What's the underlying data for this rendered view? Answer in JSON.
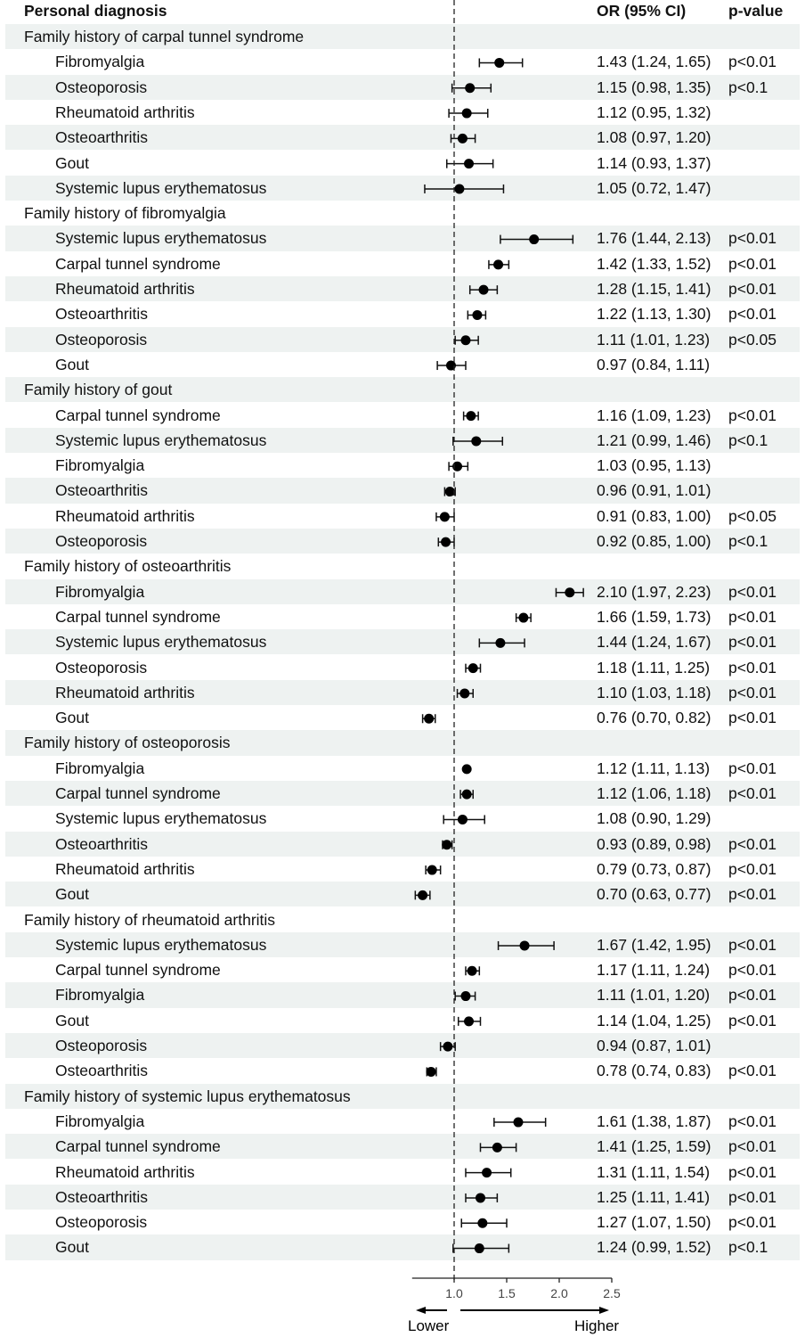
{
  "chart_data": {
    "type": "forest",
    "header": {
      "label": "Personal diagnosis",
      "or": "OR (95% CI)",
      "p": "p-value"
    },
    "xlim": [
      0.6,
      2.5
    ],
    "ticks": [
      "1.0",
      "1.5",
      "2.0",
      "2.5"
    ],
    "tick_values": [
      1.0,
      1.5,
      2.0,
      2.5
    ],
    "reference": 1.0,
    "direction_labels": {
      "lower": "Lower",
      "higher": "Higher"
    },
    "groups": [
      {
        "title": "Family history of carpal tunnel syndrome",
        "rows": [
          {
            "label": "Fibromyalgia",
            "or": 1.43,
            "lo": 1.24,
            "hi": 1.65,
            "text": "1.43 (1.24, 1.65)",
            "p": "p<0.01"
          },
          {
            "label": "Osteoporosis",
            "or": 1.15,
            "lo": 0.98,
            "hi": 1.35,
            "text": "1.15 (0.98, 1.35)",
            "p": "p<0.1"
          },
          {
            "label": "Rheumatoid arthritis",
            "or": 1.12,
            "lo": 0.95,
            "hi": 1.32,
            "text": "1.12 (0.95, 1.32)",
            "p": ""
          },
          {
            "label": "Osteoarthritis",
            "or": 1.08,
            "lo": 0.97,
            "hi": 1.2,
            "text": "1.08 (0.97, 1.20)",
            "p": ""
          },
          {
            "label": "Gout",
            "or": 1.14,
            "lo": 0.93,
            "hi": 1.37,
            "text": "1.14 (0.93, 1.37)",
            "p": ""
          },
          {
            "label": "Systemic lupus erythematosus",
            "or": 1.05,
            "lo": 0.72,
            "hi": 1.47,
            "text": "1.05 (0.72, 1.47)",
            "p": ""
          }
        ]
      },
      {
        "title": "Family history of fibromyalgia",
        "rows": [
          {
            "label": "Systemic lupus erythematosus",
            "or": 1.76,
            "lo": 1.44,
            "hi": 2.13,
            "text": "1.76 (1.44, 2.13)",
            "p": "p<0.01"
          },
          {
            "label": "Carpal tunnel syndrome",
            "or": 1.42,
            "lo": 1.33,
            "hi": 1.52,
            "text": "1.42 (1.33, 1.52)",
            "p": "p<0.01"
          },
          {
            "label": "Rheumatoid arthritis",
            "or": 1.28,
            "lo": 1.15,
            "hi": 1.41,
            "text": "1.28 (1.15, 1.41)",
            "p": "p<0.01"
          },
          {
            "label": "Osteoarthritis",
            "or": 1.22,
            "lo": 1.13,
            "hi": 1.3,
            "text": "1.22 (1.13, 1.30)",
            "p": "p<0.01"
          },
          {
            "label": "Osteoporosis",
            "or": 1.11,
            "lo": 1.01,
            "hi": 1.23,
            "text": "1.11 (1.01, 1.23)",
            "p": "p<0.05"
          },
          {
            "label": "Gout",
            "or": 0.97,
            "lo": 0.84,
            "hi": 1.11,
            "text": "0.97 (0.84, 1.11)",
            "p": ""
          }
        ]
      },
      {
        "title": "Family history of gout",
        "rows": [
          {
            "label": "Carpal tunnel syndrome",
            "or": 1.16,
            "lo": 1.09,
            "hi": 1.23,
            "text": "1.16 (1.09, 1.23)",
            "p": "p<0.01"
          },
          {
            "label": "Systemic lupus erythematosus",
            "or": 1.21,
            "lo": 0.99,
            "hi": 1.46,
            "text": "1.21 (0.99, 1.46)",
            "p": "p<0.1"
          },
          {
            "label": "Fibromyalgia",
            "or": 1.03,
            "lo": 0.95,
            "hi": 1.13,
            "text": "1.03 (0.95, 1.13)",
            "p": ""
          },
          {
            "label": "Osteoarthritis",
            "or": 0.96,
            "lo": 0.91,
            "hi": 1.01,
            "text": "0.96 (0.91, 1.01)",
            "p": ""
          },
          {
            "label": "Rheumatoid arthritis",
            "or": 0.91,
            "lo": 0.83,
            "hi": 1.0,
            "text": "0.91 (0.83, 1.00)",
            "p": "p<0.05"
          },
          {
            "label": "Osteoporosis",
            "or": 0.92,
            "lo": 0.85,
            "hi": 1.0,
            "text": "0.92 (0.85, 1.00)",
            "p": "p<0.1"
          }
        ]
      },
      {
        "title": "Family history of osteoarthritis",
        "rows": [
          {
            "label": "Fibromyalgia",
            "or": 2.1,
            "lo": 1.97,
            "hi": 2.23,
            "text": "2.10 (1.97, 2.23)",
            "p": "p<0.01"
          },
          {
            "label": "Carpal tunnel syndrome",
            "or": 1.66,
            "lo": 1.59,
            "hi": 1.73,
            "text": "1.66 (1.59, 1.73)",
            "p": "p<0.01"
          },
          {
            "label": "Systemic lupus erythematosus",
            "or": 1.44,
            "lo": 1.24,
            "hi": 1.67,
            "text": "1.44 (1.24, 1.67)",
            "p": "p<0.01"
          },
          {
            "label": "Osteoporosis",
            "or": 1.18,
            "lo": 1.11,
            "hi": 1.25,
            "text": "1.18 (1.11, 1.25)",
            "p": "p<0.01"
          },
          {
            "label": "Rheumatoid arthritis",
            "or": 1.1,
            "lo": 1.03,
            "hi": 1.18,
            "text": "1.10 (1.03, 1.18)",
            "p": "p<0.01"
          },
          {
            "label": "Gout",
            "or": 0.76,
            "lo": 0.7,
            "hi": 0.82,
            "text": "0.76 (0.70, 0.82)",
            "p": "p<0.01"
          }
        ]
      },
      {
        "title": "Family history of osteoporosis",
        "rows": [
          {
            "label": "Fibromyalgia",
            "or": 1.12,
            "lo": 1.11,
            "hi": 1.13,
            "text": "1.12 (1.11, 1.13)",
            "p": "p<0.01"
          },
          {
            "label": "Carpal tunnel syndrome",
            "or": 1.12,
            "lo": 1.06,
            "hi": 1.18,
            "text": "1.12 (1.06, 1.18)",
            "p": "p<0.01"
          },
          {
            "label": "Systemic lupus erythematosus",
            "or": 1.08,
            "lo": 0.9,
            "hi": 1.29,
            "text": "1.08 (0.90, 1.29)",
            "p": ""
          },
          {
            "label": "Osteoarthritis",
            "or": 0.93,
            "lo": 0.89,
            "hi": 0.98,
            "text": "0.93 (0.89, 0.98)",
            "p": "p<0.01"
          },
          {
            "label": "Rheumatoid arthritis",
            "or": 0.79,
            "lo": 0.73,
            "hi": 0.87,
            "text": "0.79 (0.73, 0.87)",
            "p": "p<0.01"
          },
          {
            "label": "Gout",
            "or": 0.7,
            "lo": 0.63,
            "hi": 0.77,
            "text": "0.70 (0.63, 0.77)",
            "p": "p<0.01"
          }
        ]
      },
      {
        "title": "Family history of rheumatoid arthritis",
        "rows": [
          {
            "label": "Systemic lupus erythematosus",
            "or": 1.67,
            "lo": 1.42,
            "hi": 1.95,
            "text": "1.67 (1.42, 1.95)",
            "p": "p<0.01"
          },
          {
            "label": "Carpal tunnel syndrome",
            "or": 1.17,
            "lo": 1.11,
            "hi": 1.24,
            "text": "1.17 (1.11, 1.24)",
            "p": "p<0.01"
          },
          {
            "label": "Fibromyalgia",
            "or": 1.11,
            "lo": 1.01,
            "hi": 1.2,
            "text": "1.11 (1.01, 1.20)",
            "p": "p<0.01"
          },
          {
            "label": "Gout",
            "or": 1.14,
            "lo": 1.04,
            "hi": 1.25,
            "text": "1.14 (1.04, 1.25)",
            "p": "p<0.01"
          },
          {
            "label": "Osteoporosis",
            "or": 0.94,
            "lo": 0.87,
            "hi": 1.01,
            "text": "0.94 (0.87, 1.01)",
            "p": ""
          },
          {
            "label": "Osteoarthritis",
            "or": 0.78,
            "lo": 0.74,
            "hi": 0.83,
            "text": "0.78 (0.74, 0.83)",
            "p": "p<0.01"
          }
        ]
      },
      {
        "title": "Family history of systemic lupus erythematosus",
        "rows": [
          {
            "label": "Fibromyalgia",
            "or": 1.61,
            "lo": 1.38,
            "hi": 1.87,
            "text": "1.61 (1.38, 1.87)",
            "p": "p<0.01"
          },
          {
            "label": "Carpal tunnel syndrome",
            "or": 1.41,
            "lo": 1.25,
            "hi": 1.59,
            "text": "1.41 (1.25, 1.59)",
            "p": "p<0.01"
          },
          {
            "label": "Rheumatoid arthritis",
            "or": 1.31,
            "lo": 1.11,
            "hi": 1.54,
            "text": "1.31 (1.11, 1.54)",
            "p": "p<0.01"
          },
          {
            "label": "Osteoarthritis",
            "or": 1.25,
            "lo": 1.11,
            "hi": 1.41,
            "text": "1.25 (1.11, 1.41)",
            "p": "p<0.01"
          },
          {
            "label": "Osteoporosis",
            "or": 1.27,
            "lo": 1.07,
            "hi": 1.5,
            "text": "1.27 (1.07, 1.50)",
            "p": "p<0.01"
          },
          {
            "label": "Gout",
            "or": 1.24,
            "lo": 0.99,
            "hi": 1.52,
            "text": "1.24 (0.99, 1.52)",
            "p": "p<0.1"
          }
        ]
      }
    ]
  }
}
